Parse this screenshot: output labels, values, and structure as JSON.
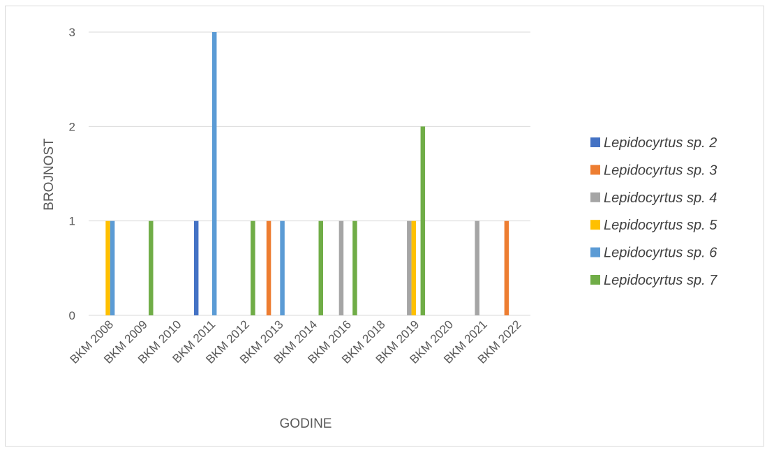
{
  "chart_data": {
    "type": "bar",
    "title": "",
    "xlabel": "GODINE",
    "ylabel": "BROJNOST",
    "ylim": [
      0,
      3
    ],
    "yticks": [
      0,
      1,
      2,
      3
    ],
    "grid": true,
    "legend_position": "right",
    "categories": [
      "BKM 2008",
      "BKM 2009",
      "BKM 2010",
      "BKM 2011",
      "BKM 2012",
      "BKM 2013",
      "BKM 2014",
      "BKM 2016",
      "BKM 2018",
      "BKM 2019",
      "BKM 2020",
      "BKM 2021",
      "BKM 2022"
    ],
    "series": [
      {
        "name": "Lepidocyrtus sp. 2",
        "color": "#4472C4",
        "values": [
          0,
          0,
          0,
          1,
          0,
          0,
          0,
          0,
          0,
          0,
          0,
          0,
          0
        ]
      },
      {
        "name": "Lepidocyrtus sp. 3",
        "color": "#ED7D31",
        "values": [
          0,
          0,
          0,
          0,
          0,
          1,
          0,
          0,
          0,
          0,
          0,
          0,
          1
        ]
      },
      {
        "name": "Lepidocyrtus sp. 4",
        "color": "#A5A5A5",
        "values": [
          0,
          0,
          0,
          0,
          0,
          0,
          0,
          1,
          0,
          1,
          0,
          1,
          0
        ]
      },
      {
        "name": "Lepidocyrtus sp. 5",
        "color": "#FFC000",
        "values": [
          1,
          0,
          0,
          0,
          0,
          0,
          0,
          0,
          0,
          1,
          0,
          0,
          0
        ]
      },
      {
        "name": "Lepidocyrtus sp. 6",
        "color": "#5B9BD5",
        "values": [
          1,
          0,
          0,
          3,
          0,
          1,
          0,
          0,
          0,
          0,
          0,
          0,
          0
        ]
      },
      {
        "name": "Lepidocyrtus sp. 7",
        "color": "#70AD47",
        "values": [
          0,
          1,
          0,
          0,
          1,
          0,
          1,
          1,
          0,
          2,
          0,
          0,
          0
        ]
      }
    ]
  }
}
